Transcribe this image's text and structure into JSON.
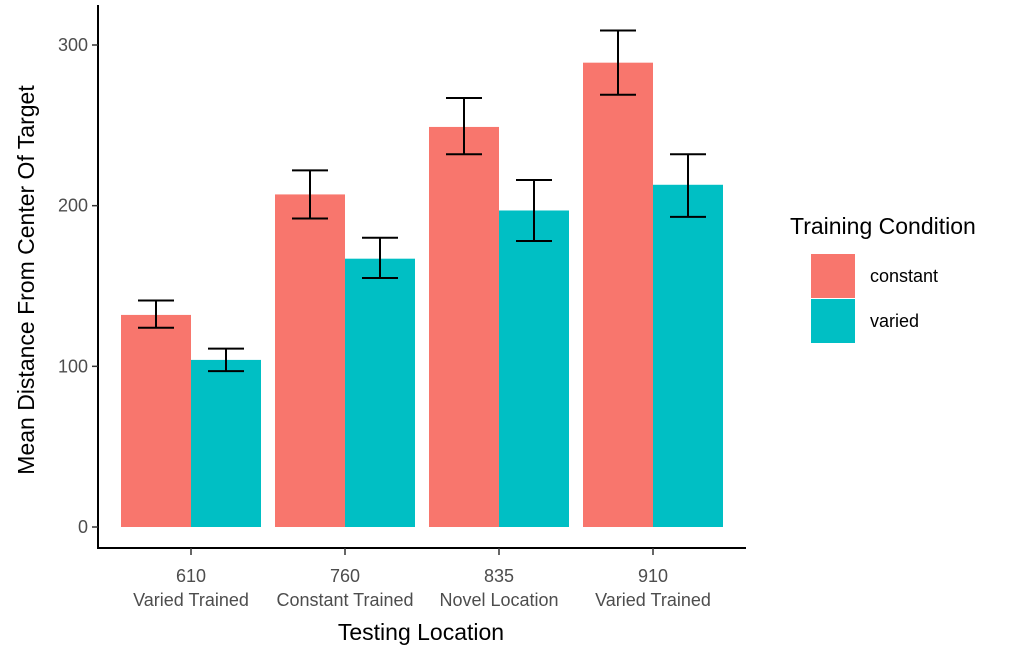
{
  "chart_data": {
    "type": "bar",
    "categories": [
      "610",
      "760",
      "835",
      "910"
    ],
    "category_sublabels": [
      "Varied Trained",
      "Constant Trained",
      "Novel Location",
      "Varied Trained"
    ],
    "xlabel": "Testing Location",
    "ylabel": "Mean Distance From Center Of Target",
    "ylim": [
      0,
      330
    ],
    "yticks": [
      0,
      100,
      200,
      300
    ],
    "legend": {
      "title": "Training Condition",
      "placement": "right"
    },
    "series": [
      {
        "name": "constant",
        "color": "#F8766D",
        "values": [
          132,
          207,
          249,
          289
        ],
        "error_low": [
          124,
          192,
          232,
          269
        ],
        "error_high": [
          141,
          222,
          267,
          309
        ]
      },
      {
        "name": "varied",
        "color": "#00BFC4",
        "values": [
          104,
          167,
          197,
          213
        ],
        "error_low": [
          97,
          155,
          178,
          193
        ],
        "error_high": [
          111,
          180,
          216,
          232
        ]
      }
    ],
    "grid": false
  }
}
